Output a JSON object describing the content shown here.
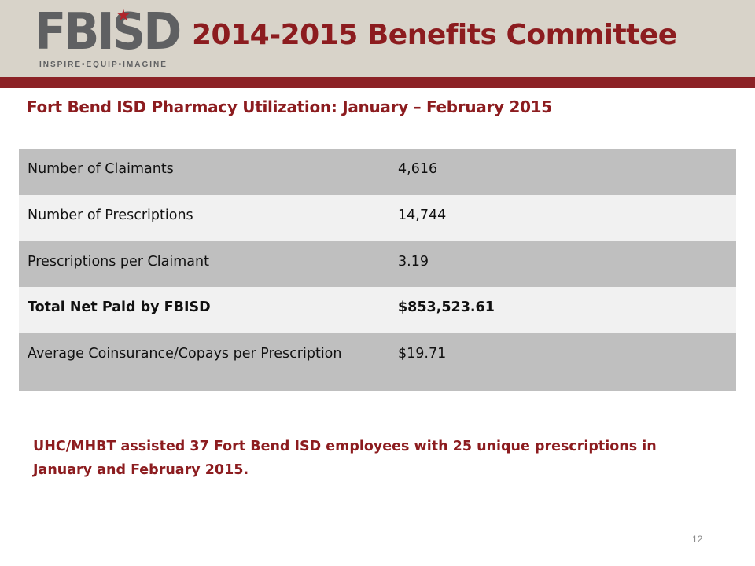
{
  "header": {
    "logo_text": "FBISD",
    "logo_tagline": "INSPIRE•EQUIP•IMAGINE",
    "title": "2014-2015 Benefits Committee",
    "accent_color": "#8c1c1f",
    "band_color": "#d8d3c9"
  },
  "slide": {
    "subtitle": "Fort Bend ISD Pharmacy Utilization: January – February 2015",
    "table": {
      "rows": [
        {
          "label": "Number of Claimants",
          "value": "4,616"
        },
        {
          "label": "Number of Prescriptions",
          "value": "14,744"
        },
        {
          "label": "Prescriptions per Claimant",
          "value": "3.19"
        },
        {
          "label": "Total Net Paid by FBISD",
          "value": "$853,523.61"
        },
        {
          "label": "Average Coinsurance/Copays per Prescription",
          "value": "$19.71"
        }
      ]
    },
    "note": "UHC/MHBT assisted 37 Fort Bend ISD employees with 25 unique prescriptions in January and February 2015.",
    "page_number": "12"
  }
}
